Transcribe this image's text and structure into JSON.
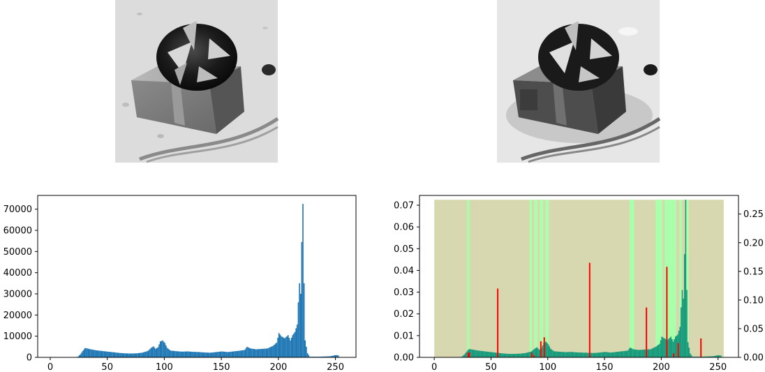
{
  "chart_data": [
    {
      "panel": "original-image",
      "type": "image",
      "description_tag": "grayscale-gift-box-photo"
    },
    {
      "panel": "equalized-image",
      "type": "image",
      "description_tag": "quantized-gift-box-photo"
    },
    {
      "panel": "histogram-original",
      "type": "bar",
      "xlim": [
        -11,
        268
      ],
      "ylim": [
        0,
        76500
      ],
      "x_ticks": [
        0,
        50,
        100,
        150,
        200,
        250
      ],
      "y_ticks": [
        0,
        10000,
        20000,
        30000,
        40000,
        50000,
        60000,
        70000
      ],
      "bar_color": "#1f77b4",
      "grid": false,
      "anchors": [
        [
          22,
          0
        ],
        [
          24,
          400
        ],
        [
          26,
          1500
        ],
        [
          28,
          3000
        ],
        [
          30,
          4400
        ],
        [
          32,
          4200
        ],
        [
          35,
          3800
        ],
        [
          40,
          3300
        ],
        [
          45,
          3000
        ],
        [
          50,
          2700
        ],
        [
          55,
          2400
        ],
        [
          60,
          2100
        ],
        [
          65,
          1900
        ],
        [
          70,
          1800
        ],
        [
          75,
          1900
        ],
        [
          80,
          2200
        ],
        [
          85,
          3000
        ],
        [
          88,
          4500
        ],
        [
          90,
          5200
        ],
        [
          92,
          4000
        ],
        [
          94,
          4800
        ],
        [
          96,
          7500
        ],
        [
          98,
          8000
        ],
        [
          100,
          6800
        ],
        [
          102,
          4500
        ],
        [
          105,
          3200
        ],
        [
          110,
          2900
        ],
        [
          115,
          2700
        ],
        [
          120,
          2800
        ],
        [
          125,
          2600
        ],
        [
          130,
          2500
        ],
        [
          135,
          2300
        ],
        [
          140,
          2200
        ],
        [
          145,
          2500
        ],
        [
          150,
          2800
        ],
        [
          155,
          2500
        ],
        [
          160,
          2800
        ],
        [
          165,
          3100
        ],
        [
          170,
          3500
        ],
        [
          172,
          5000
        ],
        [
          175,
          4200
        ],
        [
          180,
          3800
        ],
        [
          185,
          4000
        ],
        [
          190,
          4200
        ],
        [
          195,
          5500
        ],
        [
          198,
          7000
        ],
        [
          200,
          11500
        ],
        [
          202,
          10000
        ],
        [
          205,
          9000
        ],
        [
          208,
          10500
        ],
        [
          210,
          8000
        ],
        [
          212,
          10500
        ],
        [
          214,
          12000
        ],
        [
          216,
          15500
        ],
        [
          217,
          26000
        ],
        [
          218,
          35000
        ],
        [
          219,
          30000
        ],
        [
          220,
          54500
        ],
        [
          221,
          72500
        ],
        [
          222,
          35000
        ],
        [
          223,
          8000
        ],
        [
          224,
          5000
        ],
        [
          225,
          2000
        ],
        [
          227,
          300
        ],
        [
          235,
          300
        ],
        [
          245,
          500
        ],
        [
          250,
          1100
        ],
        [
          252,
          900
        ],
        [
          253,
          0
        ]
      ]
    },
    {
      "panel": "histogram-equalized",
      "type": "bar",
      "xlim": [
        -13,
        268
      ],
      "ylim_left": [
        0,
        0.0745
      ],
      "ylim_right": [
        0,
        0.2825
      ],
      "x_ticks": [
        0,
        50,
        100,
        150,
        200,
        250
      ],
      "y_ticks_left": [
        0.0,
        0.01,
        0.02,
        0.03,
        0.04,
        0.05,
        0.06,
        0.07
      ],
      "y_ticks_right": [
        0.0,
        0.05,
        0.1,
        0.15,
        0.2,
        0.25
      ],
      "background_color": "#d8d8b0",
      "band_color": "#aaffaa",
      "background_extent": [
        0,
        255
      ],
      "background_top_value": 0.0725,
      "green_bands": [
        [
          29,
          31
        ],
        [
          84,
          86
        ],
        [
          88,
          91
        ],
        [
          93,
          96
        ],
        [
          98,
          101
        ],
        [
          172,
          176
        ],
        [
          195,
          201
        ],
        [
          203,
          213
        ],
        [
          216,
          218
        ],
        [
          222,
          224
        ]
      ],
      "teal_color": "#169a7c",
      "teal_anchors": [
        [
          22,
          0
        ],
        [
          24,
          0.0004
        ],
        [
          26,
          0.0013
        ],
        [
          28,
          0.0026
        ],
        [
          30,
          0.0038
        ],
        [
          32,
          0.0037
        ],
        [
          35,
          0.0034
        ],
        [
          40,
          0.003
        ],
        [
          45,
          0.0027
        ],
        [
          50,
          0.0024
        ],
        [
          55,
          0.0021
        ],
        [
          60,
          0.0018
        ],
        [
          65,
          0.0016
        ],
        [
          70,
          0.0016
        ],
        [
          75,
          0.0017
        ],
        [
          80,
          0.002
        ],
        [
          85,
          0.0027
        ],
        [
          88,
          0.004
        ],
        [
          90,
          0.0046
        ],
        [
          92,
          0.0035
        ],
        [
          94,
          0.0043
        ],
        [
          96,
          0.0067
        ],
        [
          98,
          0.0072
        ],
        [
          100,
          0.006
        ],
        [
          102,
          0.004
        ],
        [
          105,
          0.0028
        ],
        [
          110,
          0.0026
        ],
        [
          115,
          0.0024
        ],
        [
          120,
          0.0025
        ],
        [
          125,
          0.0023
        ],
        [
          130,
          0.0022
        ],
        [
          135,
          0.0021
        ],
        [
          140,
          0.002
        ],
        [
          145,
          0.0022
        ],
        [
          150,
          0.0025
        ],
        [
          155,
          0.0022
        ],
        [
          160,
          0.0025
        ],
        [
          165,
          0.0028
        ],
        [
          170,
          0.0031
        ],
        [
          172,
          0.0045
        ],
        [
          175,
          0.0037
        ],
        [
          180,
          0.0034
        ],
        [
          185,
          0.0036
        ],
        [
          190,
          0.0037
        ],
        [
          195,
          0.005
        ],
        [
          198,
          0.0062
        ],
        [
          200,
          0.0095
        ],
        [
          202,
          0.0088
        ],
        [
          205,
          0.008
        ],
        [
          208,
          0.0095
        ],
        [
          210,
          0.0072
        ],
        [
          212,
          0.0095
        ],
        [
          214,
          0.0105
        ],
        [
          216,
          0.014
        ],
        [
          217,
          0.023
        ],
        [
          218,
          0.031
        ],
        [
          219,
          0.027
        ],
        [
          220,
          0.0475
        ],
        [
          221,
          0.0725
        ],
        [
          222,
          0.031
        ],
        [
          223,
          0.007
        ],
        [
          224,
          0.0045
        ],
        [
          225,
          0.0018
        ],
        [
          227,
          0.0003
        ],
        [
          235,
          0.0003
        ],
        [
          245,
          0.0005
        ],
        [
          250,
          0.001
        ],
        [
          252,
          0.0008
        ],
        [
          253,
          0
        ]
      ],
      "red_color": "#ff0000",
      "red_spikes": [
        [
          29,
          0.008
        ],
        [
          30,
          0.0085
        ],
        [
          55,
          0.12
        ],
        [
          85,
          0.008
        ],
        [
          87,
          0.0035
        ],
        [
          93,
          0.028
        ],
        [
          96,
          0.035
        ],
        [
          136,
          0.165
        ],
        [
          186,
          0.087
        ],
        [
          204,
          0.158
        ],
        [
          210,
          0.007
        ],
        [
          214,
          0.025
        ],
        [
          234,
          0.033
        ]
      ]
    }
  ]
}
